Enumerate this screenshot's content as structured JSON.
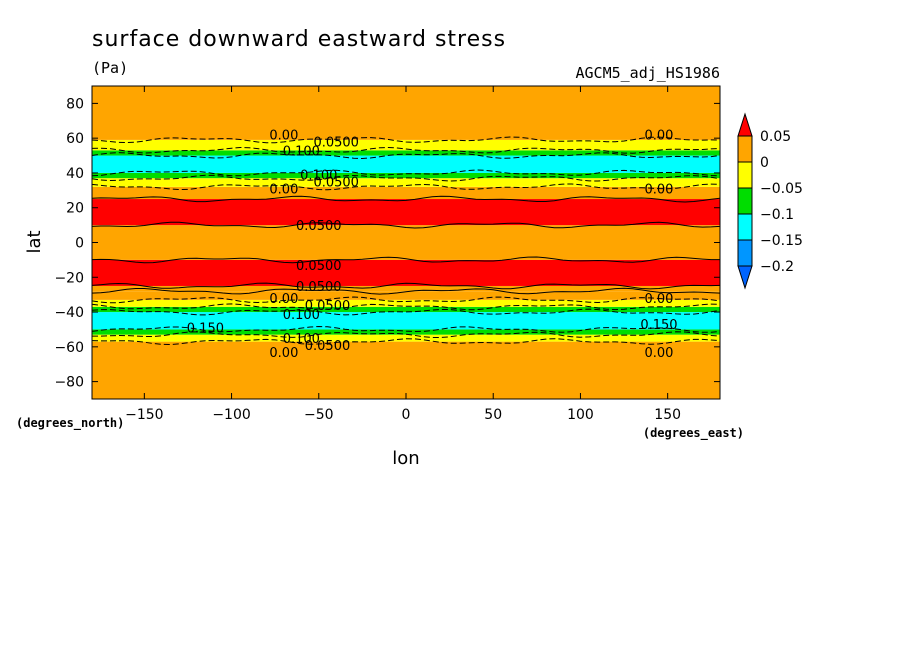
{
  "chart_data": {
    "type": "heatmap",
    "title": "surface downward eastward stress",
    "units": "(Pa)",
    "model": "AGCM5_adj_HS1986",
    "xlabel": "lon",
    "ylabel": "lat",
    "x_unit": "(degrees_east)",
    "y_unit": "(degrees_north)",
    "xlim": [
      -180,
      180
    ],
    "ylim": [
      -90,
      90
    ],
    "x_ticks": [
      -150,
      -100,
      -50,
      0,
      50,
      100,
      150
    ],
    "y_ticks": [
      -80,
      -60,
      -40,
      -20,
      0,
      20,
      40,
      60,
      80
    ],
    "colorbar": {
      "levels": [
        0.05,
        0,
        -0.05,
        -0.1,
        -0.15,
        -0.2
      ],
      "labels": [
        "0.05",
        "0",
        "−0.05",
        "−0.1",
        "−0.15",
        "−0.2"
      ],
      "colors": [
        "#ff0000",
        "#ffa500",
        "#ffff00",
        "#00dd00",
        "#00ffff",
        "#0096ff",
        "#0064ff"
      ]
    },
    "bands": [
      {
        "lat_min": -90,
        "lat_max": -57,
        "value": 0.0
      },
      {
        "lat_min": -57,
        "lat_max": -53,
        "value": -0.05
      },
      {
        "lat_min": -53,
        "lat_max": -50,
        "value": -0.1
      },
      {
        "lat_min": -50,
        "lat_max": -40,
        "value": -0.15
      },
      {
        "lat_min": -40,
        "lat_max": -37,
        "value": -0.1
      },
      {
        "lat_min": -37,
        "lat_max": -33,
        "value": -0.05
      },
      {
        "lat_min": -33,
        "lat_max": -28,
        "value": 0.0
      },
      {
        "lat_min": -28,
        "lat_max": -25,
        "value": 0.02
      },
      {
        "lat_min": -25,
        "lat_max": -10,
        "value": 0.05
      },
      {
        "lat_min": -10,
        "lat_max": 10,
        "value": 0.02
      },
      {
        "lat_min": 10,
        "lat_max": 25,
        "value": 0.05
      },
      {
        "lat_min": 25,
        "lat_max": 32,
        "value": 0.0
      },
      {
        "lat_min": 32,
        "lat_max": 37,
        "value": -0.05
      },
      {
        "lat_min": 37,
        "lat_max": 40,
        "value": -0.1
      },
      {
        "lat_min": 40,
        "lat_max": 50,
        "value": -0.15
      },
      {
        "lat_min": 50,
        "lat_max": 53,
        "value": -0.1
      },
      {
        "lat_min": 53,
        "lat_max": 59,
        "value": -0.05
      },
      {
        "lat_min": 59,
        "lat_max": 90,
        "value": 0.0
      }
    ],
    "contour_labels": [
      {
        "text": "0.00",
        "lon": -70,
        "lat": 62
      },
      {
        "text": "0.00",
        "lon": 145,
        "lat": 62
      },
      {
        "text": "0.0500",
        "lon": -40,
        "lat": 58
      },
      {
        "text": "0.100",
        "lon": -60,
        "lat": 53
      },
      {
        "text": "0.100",
        "lon": -50,
        "lat": 39
      },
      {
        "text": "0.0500",
        "lon": -40,
        "lat": 35
      },
      {
        "text": "0.00",
        "lon": -70,
        "lat": 31
      },
      {
        "text": "0.00",
        "lon": 145,
        "lat": 31
      },
      {
        "text": "0.0500",
        "lon": -50,
        "lat": 10
      },
      {
        "text": "0.0500",
        "lon": -50,
        "lat": -13
      },
      {
        "text": "0.0500",
        "lon": -50,
        "lat": -25
      },
      {
        "text": "0.00",
        "lon": -70,
        "lat": -32
      },
      {
        "text": "0.00",
        "lon": 145,
        "lat": -32
      },
      {
        "text": "0.0500",
        "lon": -45,
        "lat": -36
      },
      {
        "text": "0.100",
        "lon": -60,
        "lat": -41
      },
      {
        "text": "0.150",
        "lon": -115,
        "lat": -49
      },
      {
        "text": "0.150",
        "lon": 145,
        "lat": -47
      },
      {
        "text": "0.100",
        "lon": -60,
        "lat": -55
      },
      {
        "text": "0.0500",
        "lon": -45,
        "lat": -59
      },
      {
        "text": "0.00",
        "lon": -70,
        "lat": -63
      },
      {
        "text": "0.00",
        "lon": 145,
        "lat": -63
      }
    ],
    "grid": false,
    "legend": "right"
  }
}
